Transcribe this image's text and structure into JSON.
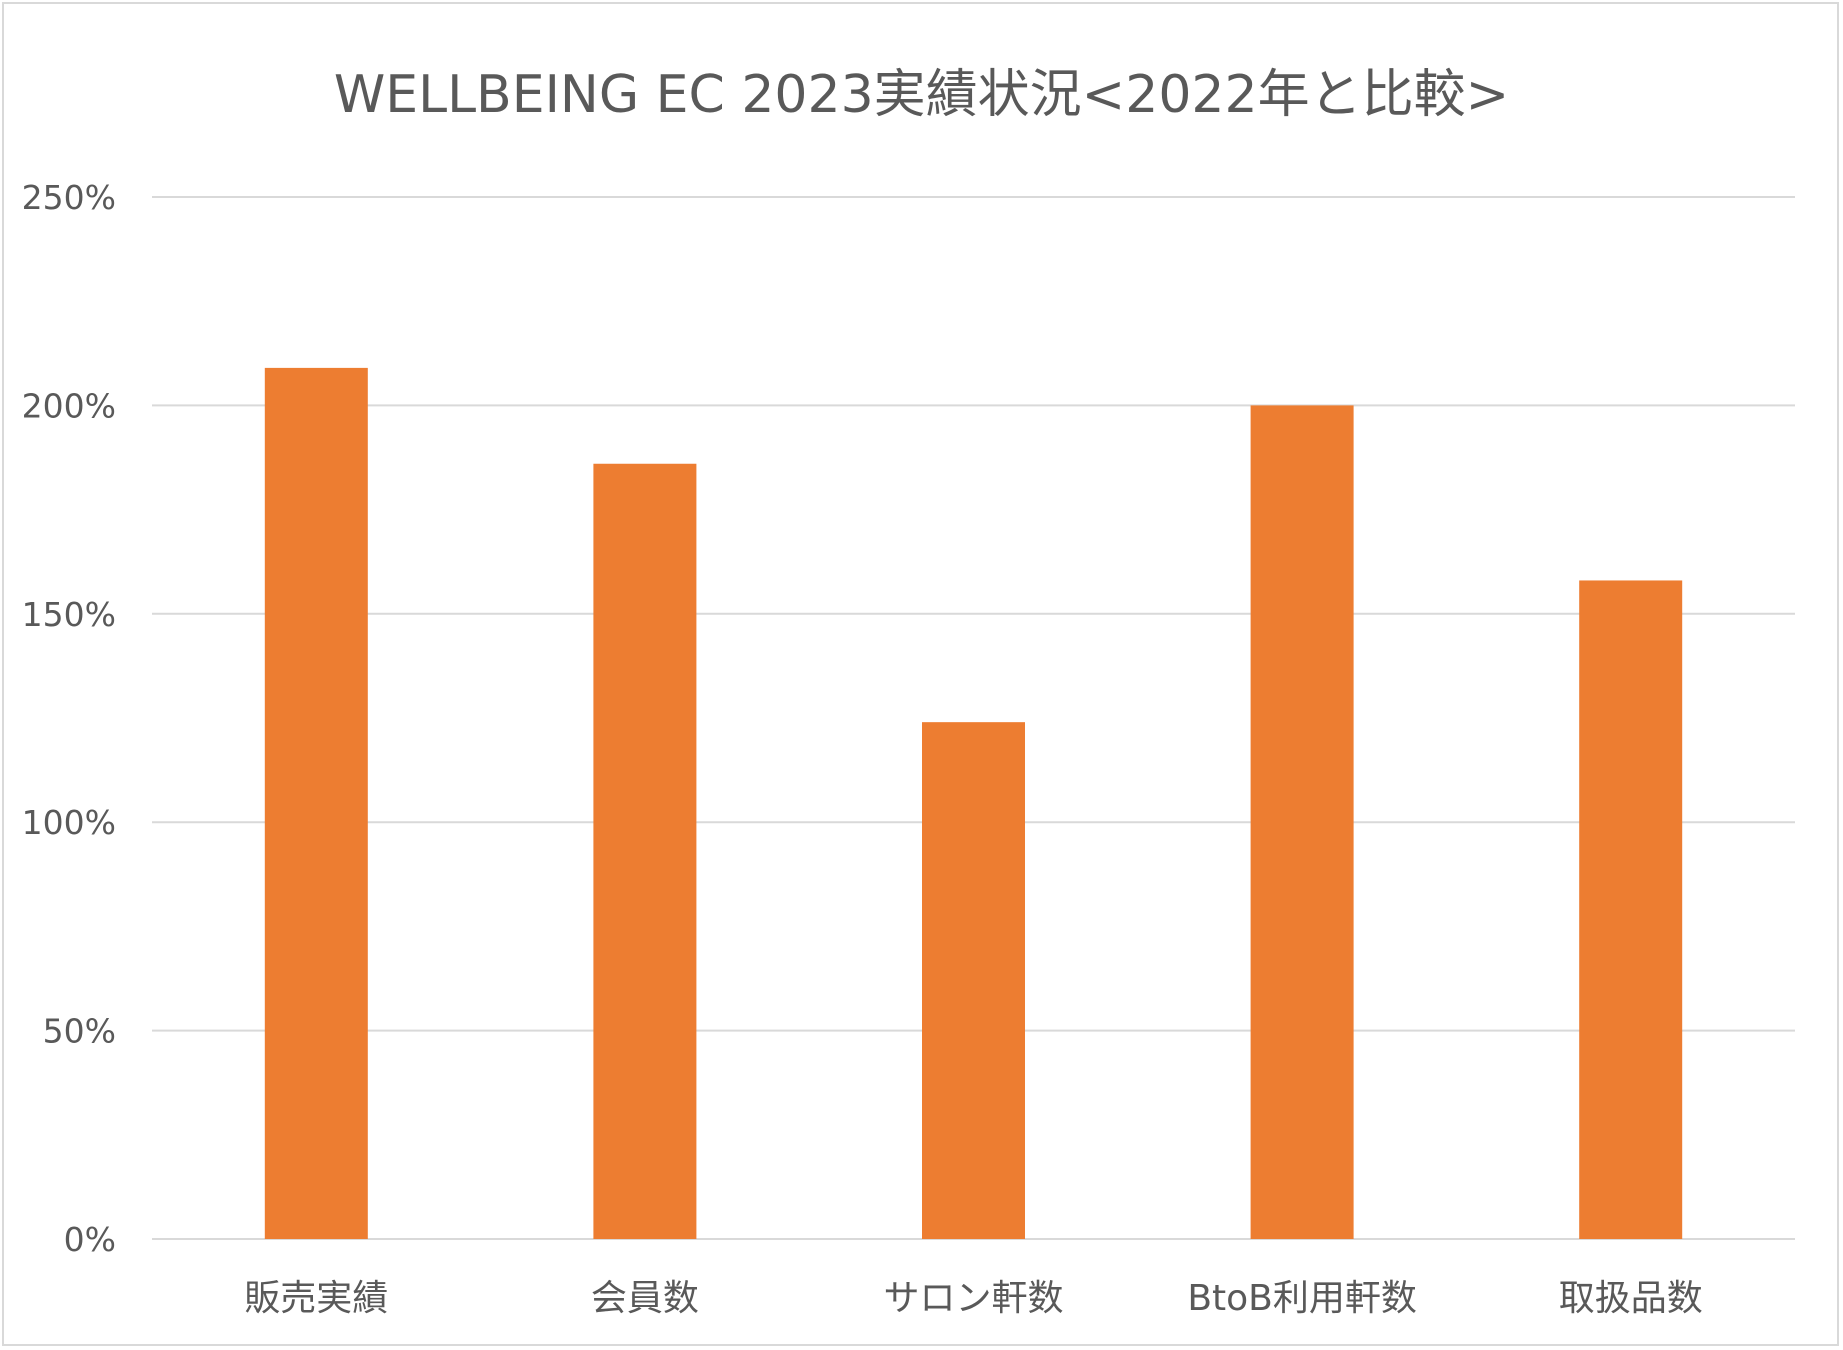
{
  "chart_data": {
    "type": "bar",
    "title": "WELLBEING EC 2023実績状況<2022年と比較>",
    "categories": [
      "販売実績",
      "会員数",
      "サロン軒数",
      "BtoB利用軒数",
      "取扱品数"
    ],
    "values": [
      209,
      186,
      124,
      200,
      158
    ],
    "unit": "%",
    "ylim": [
      0,
      250
    ],
    "yticks": [
      0,
      50,
      100,
      150,
      200,
      250
    ],
    "ytick_labels": [
      "0%",
      "50%",
      "100%",
      "150%",
      "200%",
      "250%"
    ],
    "xlabel": "",
    "ylabel": "",
    "grid": true,
    "legend": "none",
    "bar_color": "#ed7d31",
    "grid_color": "#d9d9d9",
    "text_color": "#595959"
  }
}
